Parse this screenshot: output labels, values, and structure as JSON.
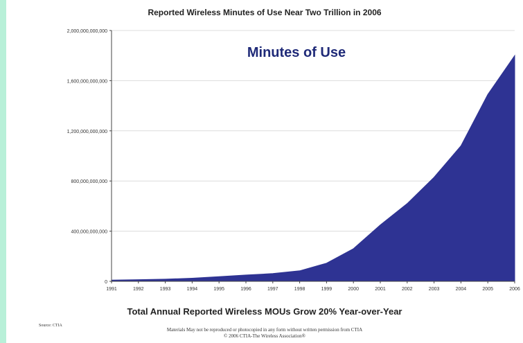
{
  "chart_data": {
    "type": "area",
    "title": "Reported Wireless Minutes of Use Near Two Trillion in 2006",
    "annotation": "Minutes of Use",
    "subtitle": "Total Annual Reported Wireless MOUs Grow 20% Year-over-Year",
    "x": [
      "1991",
      "1992",
      "1993",
      "1994",
      "1995",
      "1996",
      "1997",
      "1998",
      "1999",
      "2000",
      "2001",
      "2002",
      "2003",
      "2004",
      "2005",
      "2006"
    ],
    "values": [
      10000000000,
      13000000000,
      17000000000,
      25000000000,
      37000000000,
      50000000000,
      62000000000,
      84000000000,
      145000000000,
      260000000000,
      450000000000,
      620000000000,
      830000000000,
      1080000000000,
      1490000000000,
      1800000000000
    ],
    "y_ticks": [
      "0",
      "400,000,000,000",
      "800,000,000,000",
      "1,200,000,000,000",
      "1,600,000,000,000",
      "2,000,000,000,000"
    ],
    "y_tick_values": [
      0,
      400000000000,
      800000000000,
      1200000000000,
      1600000000000,
      2000000000000
    ],
    "ylim": [
      0,
      2000000000000
    ],
    "grid": true,
    "fill_color": "#2e3393",
    "annotation_color": "#1f2a78"
  },
  "footer": {
    "source": "Source: CTIA",
    "line1": "Materials May not be reproduced or photocopied in any form without written permission from CTIA",
    "line2": "© 2006 CTIA-The Wireless Association®"
  }
}
